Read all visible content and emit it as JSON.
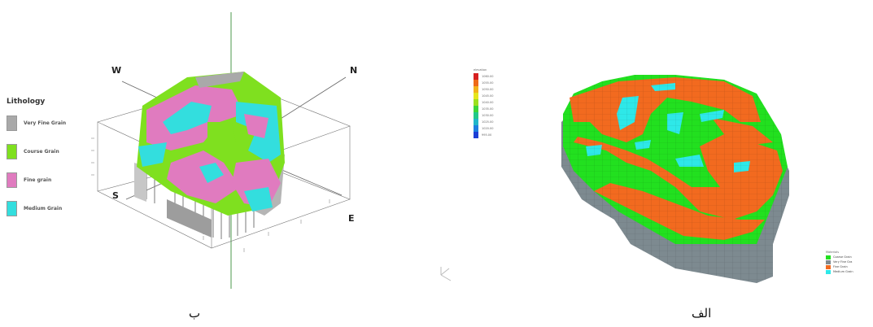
{
  "left_panel": {
    "legend_title": "Lithology",
    "legend": [
      {
        "label": "Very Fine Grain",
        "color": "#a9a9a9"
      },
      {
        "label": "Course Grain",
        "color": "#7fe01f"
      },
      {
        "label": "Fine grain",
        "color": "#e07bbf"
      },
      {
        "label": "Medium Grain",
        "color": "#33dede"
      }
    ],
    "directions": {
      "west": "W",
      "north": "N",
      "south": "S",
      "east": "E"
    },
    "caption": "ب"
  },
  "right_panel": {
    "colorbar_title": "elevation",
    "colorbar_ticks": [
      "1060.00",
      "1055.00",
      "1050.00",
      "1045.00",
      "1040.00",
      "1035.00",
      "1030.00",
      "1025.00",
      "1020.00",
      "995.00"
    ],
    "colorbar_colors": [
      "#d62020",
      "#ee6a18",
      "#f2b21a",
      "#e6e61c",
      "#9be01e",
      "#3cd63a",
      "#20c98a",
      "#20b6c9",
      "#1d7fe0",
      "#1d3fd6"
    ],
    "legend_title": "Materials",
    "legend": [
      {
        "label": "Coarse Grain",
        "color": "#22e01f"
      },
      {
        "label": "Very Fine Gra",
        "color": "#7d8a90"
      },
      {
        "label": "Fine Grain",
        "color": "#f26a1f"
      },
      {
        "label": "Medium Grain",
        "color": "#2ee8e8"
      }
    ],
    "caption": "الف"
  }
}
